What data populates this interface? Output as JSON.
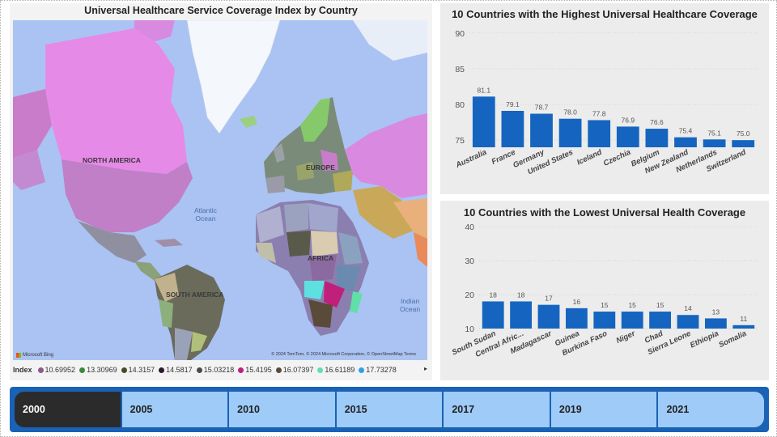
{
  "map": {
    "title": "Universal Healthcare Service Coverage Index by Country",
    "continents": [
      "NORTH AMERICA",
      "SOUTH AMERICA",
      "EUROPE",
      "AFRICA"
    ],
    "oceans": {
      "atlantic": "Atlantic\nOcean",
      "indian": "Indian\nOcean"
    },
    "bing_label": "Microsoft Bing",
    "copyright": "© 2024 TomTom, © 2024 Microsoft Corporation, © OpenStreetMap  Terms",
    "legend": {
      "title": "Index",
      "items": [
        {
          "label": "10.69952",
          "color": "#8a5a8a"
        },
        {
          "label": "13.30969",
          "color": "#3a8a3a"
        },
        {
          "label": "14.3157",
          "color": "#4a4a2a"
        },
        {
          "label": "14.5817",
          "color": "#2a1a2a"
        },
        {
          "label": "15.03218",
          "color": "#4a4a4a"
        },
        {
          "label": "15.4195",
          "color": "#c0207a"
        },
        {
          "label": "16.07397",
          "color": "#5a4a3a"
        },
        {
          "label": "16.61189",
          "color": "#5fe0a8"
        },
        {
          "label": "17.73278",
          "color": "#30a0e8"
        }
      ]
    }
  },
  "chart_data": [
    {
      "type": "bar",
      "title": "10 Countries with the Highest Universal Healthcare Coverage",
      "categories": [
        "Australia",
        "France",
        "Germany",
        "United States",
        "Iceland",
        "Czechia",
        "Belgium",
        "New Zealand",
        "Netherlands",
        "Switzerland"
      ],
      "values": [
        81.1,
        79.1,
        78.7,
        78.0,
        77.8,
        76.9,
        76.6,
        75.4,
        75.1,
        75.0
      ],
      "value_labels": [
        "81.1",
        "79.1",
        "78.7",
        "78.0",
        "77.8",
        "76.9",
        "76.6",
        "75.4",
        "75.1",
        "75.0"
      ],
      "yticks": [
        75,
        80,
        85,
        90
      ],
      "ylim": [
        74,
        91
      ],
      "grid": true,
      "bar_color": "#1565c0"
    },
    {
      "type": "bar",
      "title": "10 Countries with the Lowest Universal Health Coverage",
      "categories": [
        "South Sudan",
        "Central Afric...",
        "Madagascar",
        "Guinea",
        "Burkina Faso",
        "Niger",
        "Chad",
        "Sierra Leone",
        "Ethiopia",
        "Somalia"
      ],
      "values": [
        18,
        18,
        17,
        16,
        15,
        15,
        15,
        14,
        13,
        11
      ],
      "value_labels": [
        "18",
        "18",
        "17",
        "16",
        "15",
        "15",
        "15",
        "14",
        "13",
        "11"
      ],
      "yticks": [
        10,
        20,
        30,
        40
      ],
      "ylim": [
        10,
        41
      ],
      "grid": true,
      "bar_color": "#1565c0"
    }
  ],
  "slicer": {
    "years": [
      "2000",
      "2005",
      "2010",
      "2015",
      "2017",
      "2019",
      "2021"
    ],
    "selected": "2000"
  }
}
